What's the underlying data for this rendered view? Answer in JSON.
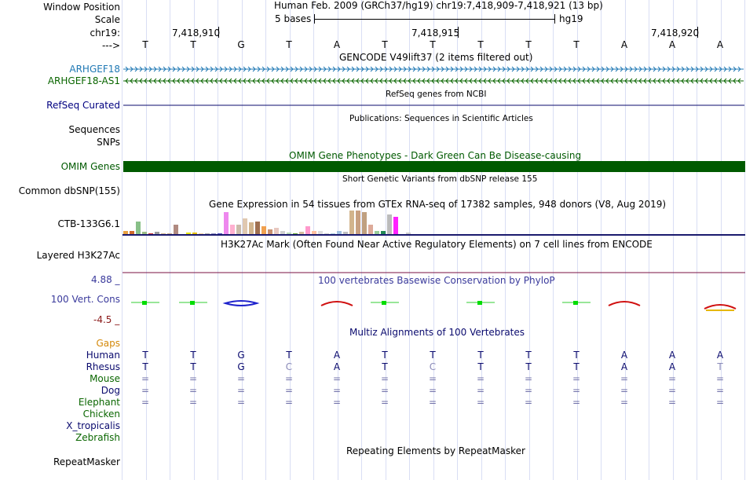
{
  "header": {
    "window_position_label": "Window Position",
    "scale_label": "Scale",
    "chrom_label": "chr19:",
    "arrow_label": "--->",
    "assembly_text": "Human Feb. 2009 (GRCh37/hg19)   chr19:7,418,909-7,418,921 (13 bp)",
    "scale_text": "5 bases",
    "scale_db": "hg19",
    "coords": [
      "7,418,910",
      "7,418,915",
      "7,418,920"
    ],
    "bases": [
      "T",
      "T",
      "G",
      "T",
      "A",
      "T",
      "T",
      "T",
      "T",
      "T",
      "A",
      "A",
      "A"
    ]
  },
  "tracks": {
    "gencode_title": "GENCODE V49lift37 (2 items filtered out)",
    "gene1": "ARHGEF18",
    "gene2": "ARHGEF18-AS1",
    "refseq_label": "RefSeq Curated",
    "refseq_title": "RefSeq genes from NCBI",
    "pubs_title": "Publications: Sequences in Scientific Articles",
    "sequences_label": "Sequences",
    "snps_label": "SNPs",
    "omim_title": "OMIM Gene Phenotypes - Dark Green Can Be Disease-causing",
    "omim_label": "OMIM Genes",
    "dbsnp_title": "Short Genetic Variants from dbSNP release 155",
    "dbsnp_label": "Common dbSNP(155)",
    "gtex_title": "Gene Expression in 54 tissues from GTEx RNA-seq of 17382 samples, 948 donors (V8, Aug 2019)",
    "gtex_label": "CTB-133G6.1",
    "h3k_title": "H3K27Ac Mark (Often Found Near Active Regulatory Elements) on 7 cell lines from ENCODE",
    "h3k_label": "Layered H3K27Ac",
    "phylop_title": "100 vertebrates Basewise Conservation by PhyloP",
    "phylop_label": "100 Vert. Cons",
    "phylop_max": "4.88 _",
    "phylop_min": "-4.5 _",
    "multiz_title": "Multiz Alignments of 100 Vertebrates",
    "gaps_label": "Gaps",
    "repeat_title": "Repeating Elements by RepeatMasker",
    "repeat_label": "RepeatMasker"
  },
  "species": [
    "Human",
    "Rhesus",
    "Mouse",
    "Dog",
    "Elephant",
    "Chicken",
    "X_tropicalis",
    "Zebrafish"
  ],
  "alignment": {
    "human": [
      "T",
      "T",
      "G",
      "T",
      "A",
      "T",
      "T",
      "T",
      "T",
      "T",
      "A",
      "A",
      "A"
    ],
    "rhesus": [
      "T",
      "T",
      "G",
      "C",
      "A",
      "T",
      "C",
      "T",
      "T",
      "T",
      "A",
      "A",
      "T"
    ],
    "mouse": [
      "=",
      "=",
      "=",
      "=",
      "=",
      "=",
      "=",
      "=",
      "=",
      "=",
      "=",
      "=",
      "="
    ],
    "dog": [
      "=",
      "=",
      "=",
      "=",
      "=",
      "=",
      "=",
      "=",
      "=",
      "=",
      "=",
      "=",
      "="
    ],
    "elephant": [
      "=",
      "=",
      "=",
      "=",
      "=",
      "=",
      "=",
      "=",
      "=",
      "=",
      "=",
      "=",
      "="
    ]
  },
  "colors": {
    "label_blue": "#000080",
    "gene1_color": "#1f78b4",
    "gene2_color": "#0a6600",
    "omim_green": "#005a00",
    "phylop_blue": "#3a3a9c",
    "h3k_line": "#1a1a6e"
  }
}
